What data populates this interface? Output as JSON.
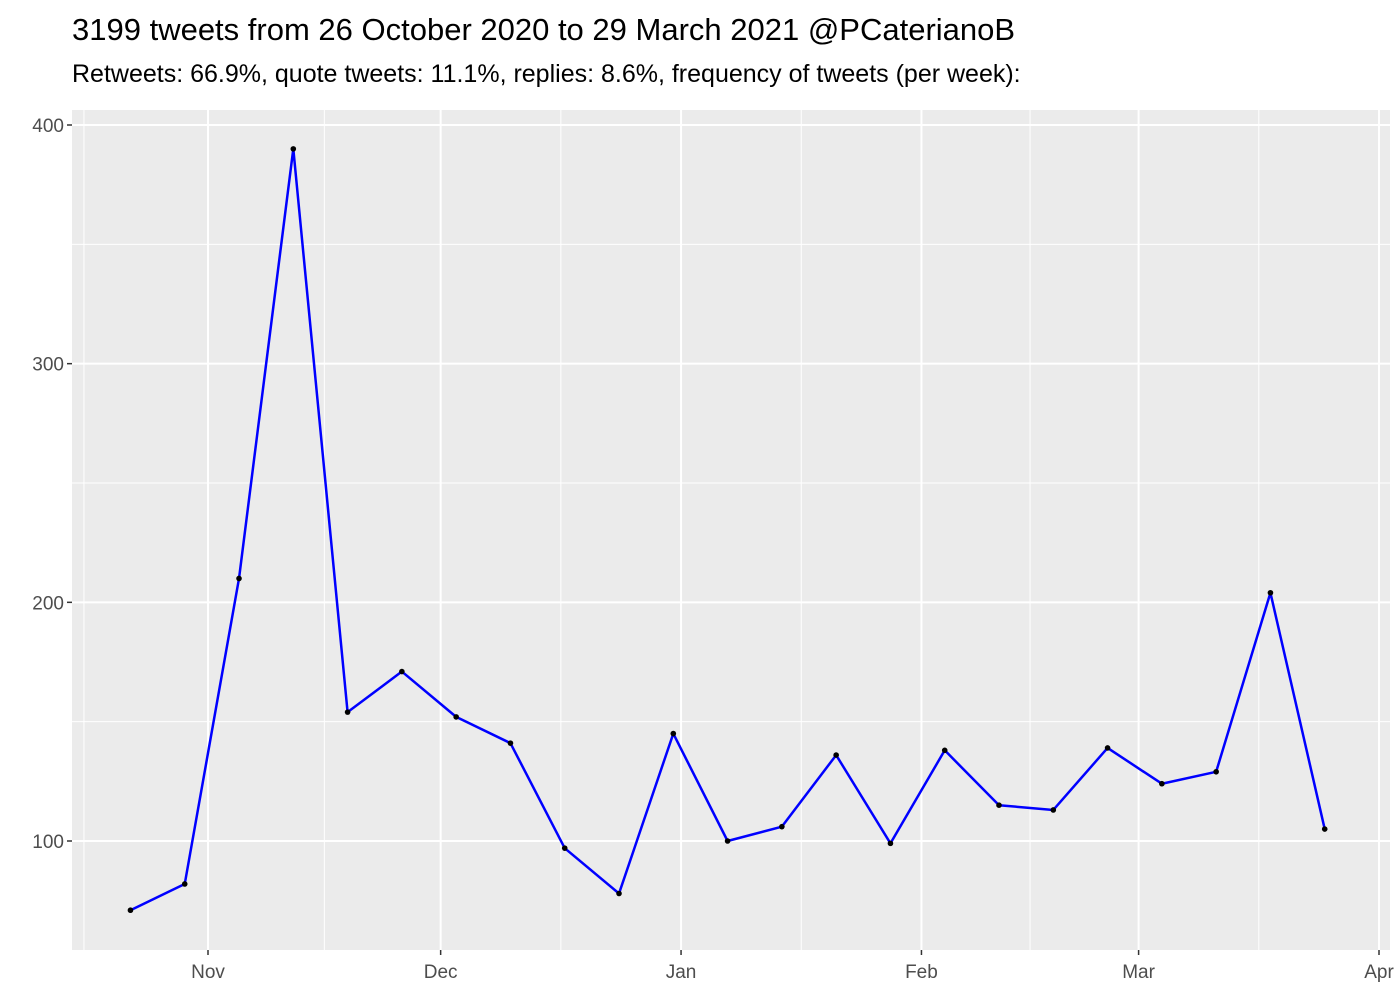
{
  "chart_data": {
    "type": "line",
    "title": "3199 tweets from 26 October 2020 to 29 March 2021 @PCaterianoB",
    "subtitle": "Retweets: 66.9%, quote tweets: 11.1%, replies: 8.6%, frequency of tweets (per week):",
    "xlabel": "",
    "ylabel": "",
    "x": [
      "2020-10-22",
      "2020-10-29",
      "2020-11-05",
      "2020-11-12",
      "2020-11-19",
      "2020-11-26",
      "2020-12-03",
      "2020-12-10",
      "2020-12-17",
      "2020-12-24",
      "2020-12-31",
      "2021-01-07",
      "2021-01-14",
      "2021-01-21",
      "2021-01-28",
      "2021-02-04",
      "2021-02-11",
      "2021-02-18",
      "2021-02-25",
      "2021-03-04",
      "2021-03-11",
      "2021-03-18",
      "2021-03-25"
    ],
    "values": [
      71,
      82,
      210,
      390,
      154,
      171,
      152,
      141,
      97,
      78,
      145,
      100,
      106,
      136,
      99,
      138,
      115,
      113,
      139,
      124,
      129,
      204,
      105
    ],
    "xlim": [
      "2020-10-13",
      "2021-04-03"
    ],
    "ylim": [
      54,
      406
    ],
    "x_ticks": [
      {
        "date": "2020-11-01",
        "label": "Nov"
      },
      {
        "date": "2020-12-01",
        "label": "Dec"
      },
      {
        "date": "2021-01-01",
        "label": "Jan"
      },
      {
        "date": "2021-02-01",
        "label": "Feb"
      },
      {
        "date": "2021-03-01",
        "label": "Mar"
      },
      {
        "date": "2021-04-01",
        "label": "Apr"
      }
    ],
    "y_ticks": [
      100,
      200,
      300,
      400
    ],
    "grid": true,
    "line_color": "#0000ff",
    "point_color": "#000000",
    "panel_background": "#ebebeb"
  }
}
